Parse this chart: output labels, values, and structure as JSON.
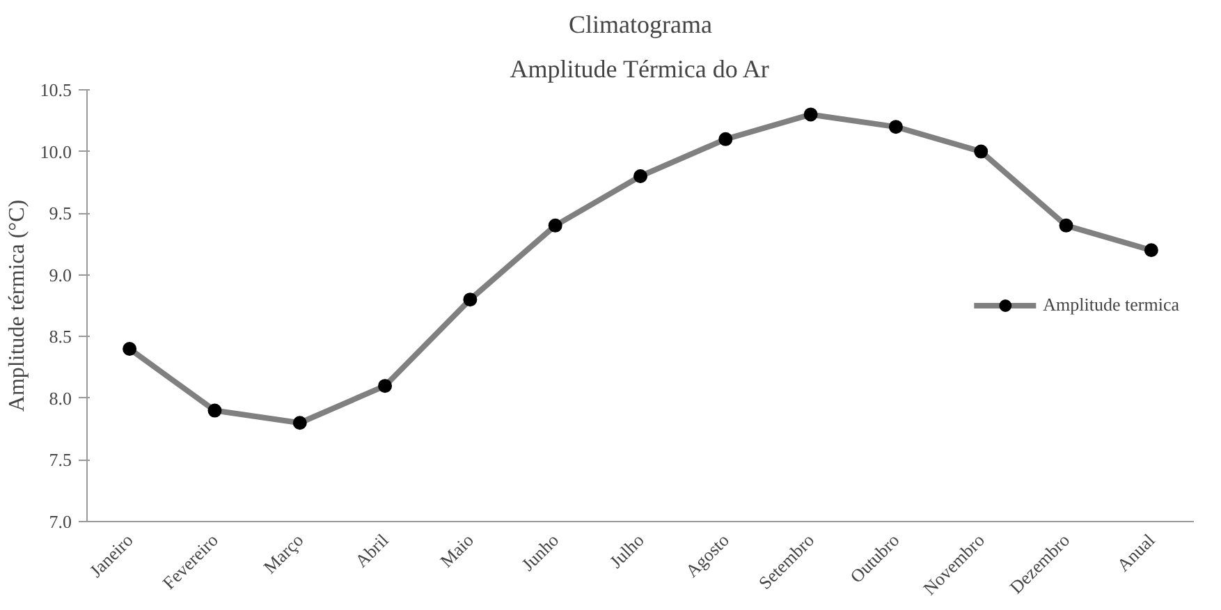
{
  "chart_data": {
    "type": "line",
    "title": "Climatograma",
    "subtitle": "Amplitude Térmica do Ar",
    "ylabel": "Amplitude térmica (°C)",
    "categories": [
      "Janeiro",
      "Fevereiro",
      "Março",
      "Abril",
      "Maio",
      "Junho",
      "Julho",
      "Agosto",
      "Setembro",
      "Outubro",
      "Novembro",
      "Dezembro",
      "Anual"
    ],
    "series": [
      {
        "name": "Amplitude termica",
        "color": "#808080",
        "values": [
          8.4,
          7.9,
          7.8,
          8.1,
          8.8,
          9.4,
          9.8,
          10.1,
          10.3,
          10.2,
          10.0,
          9.4,
          9.2
        ]
      }
    ],
    "ylim": [
      7.0,
      10.5
    ],
    "yticks": [
      {
        "value": 7.0,
        "label": "7.0"
      },
      {
        "value": 7.5,
        "label": "7.5"
      },
      {
        "value": 8.0,
        "label": "8.0"
      },
      {
        "value": 8.5,
        "label": "8.5"
      },
      {
        "value": 9.0,
        "label": "9.0"
      },
      {
        "value": 9.5,
        "label": "9.5"
      },
      {
        "value": 10.0,
        "label": "10.0"
      },
      {
        "value": 10.5,
        "label": "10.5"
      }
    ],
    "grid": false,
    "legend": "right",
    "marker": "circle",
    "line_style": "solid"
  }
}
